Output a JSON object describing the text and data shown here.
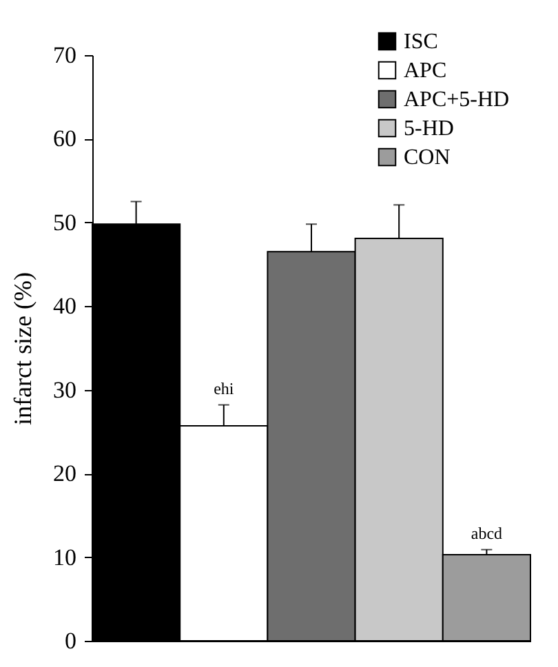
{
  "chart_data": {
    "type": "bar",
    "ylabel": "infarct size (%)",
    "categories": [
      null
    ],
    "series": [
      {
        "name": "ISC",
        "color": "#000000",
        "values": [
          49.8
        ],
        "errors": [
          [
            49.8,
            52.5
          ]
        ]
      },
      {
        "name": "APC",
        "color": "#ffffff",
        "values": [
          25.7
        ],
        "errors": [
          [
            25.7,
            28.2
          ]
        ]
      },
      {
        "name": "APC+5-HD",
        "color": "#6e6e6e",
        "values": [
          46.5
        ],
        "errors": [
          [
            46.5,
            49.8
          ]
        ]
      },
      {
        "name": "5-HD",
        "color": "#c8c8c8",
        "values": [
          48.1
        ],
        "errors": [
          [
            48.1,
            52.1
          ]
        ]
      },
      {
        "name": "CON",
        "color": "#9c9c9c",
        "values": [
          10.3
        ],
        "errors": [
          [
            10.3,
            10.9
          ]
        ]
      }
    ],
    "ylim": [
      0,
      70
    ],
    "yticks": [
      0,
      10,
      20,
      30,
      40,
      50,
      60,
      70
    ],
    "tick_labels": "y",
    "legend": "top right",
    "grid": false,
    "annotations": [
      {
        "text": "ehi",
        "y": 28.2
      },
      {
        "text": "abcd",
        "y": 10.9
      }
    ]
  }
}
